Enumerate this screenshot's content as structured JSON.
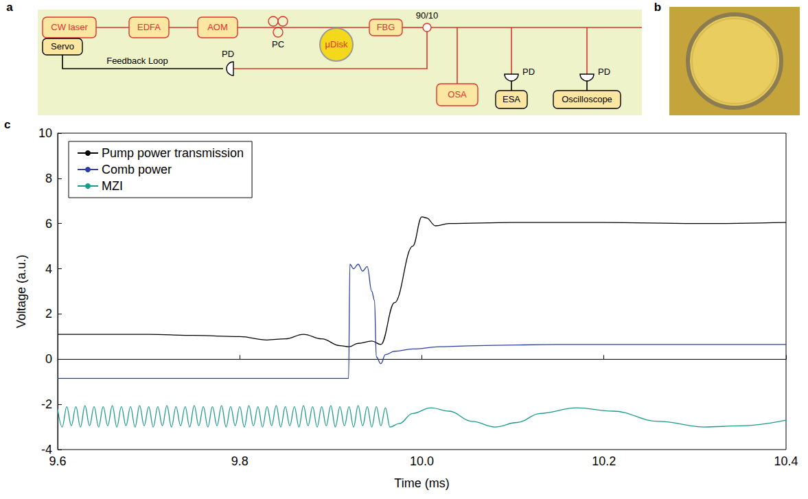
{
  "panel_labels": [
    "a",
    "b",
    "c"
  ],
  "diagram": {
    "nodes": [
      {
        "label": "CW laser"
      },
      {
        "label": "EDFA"
      },
      {
        "label": "AOM"
      },
      {
        "label": "PC"
      },
      {
        "label": "μDisk"
      },
      {
        "label": "FBG"
      },
      {
        "label": "90/10"
      },
      {
        "label": "Servo"
      },
      {
        "label": "PD"
      },
      {
        "label": "OSA"
      },
      {
        "label": "PD"
      },
      {
        "label": "ESA"
      },
      {
        "label": "PD"
      },
      {
        "label": "Oscilloscope"
      }
    ],
    "feedback_label": "Feedback Loop"
  },
  "chart_data": {
    "type": "line",
    "x_label": "Time (ms)",
    "y_label": "Voltage (a.u.)",
    "xlim": [
      9.6,
      10.4
    ],
    "xticks": [
      9.6,
      9.8,
      {
        "value": 10,
        "label": "10.0"
      },
      10.2,
      10.4
    ],
    "ylim": [
      -4,
      10
    ],
    "yticks": [
      -4,
      -2,
      0,
      2,
      4,
      6,
      8,
      10
    ],
    "grid": false,
    "legend": "upper left",
    "series": [
      {
        "name": "Pump power transmission",
        "color": "#000000",
        "x": [
          9.6,
          9.65,
          9.7,
          9.75,
          9.8,
          9.83,
          9.85,
          9.87,
          9.89,
          9.91,
          9.92,
          9.93,
          9.945,
          9.955,
          9.97,
          9.99,
          10.0,
          10.005,
          10.015,
          10.03,
          10.1,
          10.2,
          10.3,
          10.4
        ],
        "values": [
          1.1,
          1.1,
          1.1,
          1.05,
          1.0,
          0.85,
          0.9,
          1.1,
          0.9,
          0.6,
          0.55,
          0.7,
          0.8,
          0.65,
          2.5,
          5.0,
          6.3,
          6.25,
          5.9,
          6.0,
          6.05,
          6.05,
          6.0,
          6.05
        ]
      },
      {
        "name": "Comb power",
        "color": "#2b3f9e",
        "x": [
          9.6,
          9.7,
          9.8,
          9.9,
          9.9195,
          9.921,
          9.925,
          9.93,
          9.935,
          9.94,
          9.945,
          9.948,
          9.95,
          9.955,
          9.96,
          9.97,
          9.99,
          10.02,
          10.06,
          10.15,
          10.25,
          10.4
        ],
        "values": [
          -0.85,
          -0.85,
          -0.85,
          -0.85,
          -0.85,
          4.2,
          4.0,
          4.2,
          3.9,
          4.1,
          3.0,
          2.6,
          0.1,
          -0.2,
          0.2,
          0.35,
          0.45,
          0.55,
          0.6,
          0.65,
          0.65,
          0.65
        ]
      },
      {
        "name": "MZI",
        "color": "#1a9a8a",
        "x": [
          9.6,
          9.605,
          9.61,
          9.615,
          9.62,
          9.625,
          9.63,
          9.635,
          9.64,
          9.645,
          9.65,
          9.655,
          9.66,
          9.665,
          9.67,
          9.675,
          9.68,
          9.685,
          9.69,
          9.695,
          9.7,
          9.705,
          9.71,
          9.715,
          9.72,
          9.725,
          9.73,
          9.735,
          9.74,
          9.745,
          9.75,
          9.755,
          9.76,
          9.765,
          9.77,
          9.775,
          9.78,
          9.785,
          9.79,
          9.795,
          9.8,
          9.805,
          9.81,
          9.815,
          9.82,
          9.825,
          9.83,
          9.835,
          9.84,
          9.845,
          9.85,
          9.855,
          9.86,
          9.865,
          9.87,
          9.875,
          9.88,
          9.885,
          9.89,
          9.895,
          9.9,
          9.905,
          9.91,
          9.915,
          9.92,
          9.925,
          9.93,
          9.935,
          9.94,
          9.945,
          9.95,
          9.955,
          9.96,
          9.965,
          9.975,
          9.99,
          10.01,
          10.03,
          10.055,
          10.08,
          10.105,
          10.13,
          10.17,
          10.21,
          10.26,
          10.31,
          10.35,
          10.4
        ],
        "values": [
          -2.2,
          -3.0,
          -2.1,
          -2.95,
          -2.1,
          -3.0,
          -2.05,
          -2.95,
          -2.1,
          -3.0,
          -2.1,
          -2.95,
          -2.05,
          -3.0,
          -2.1,
          -2.95,
          -2.1,
          -3.0,
          -2.05,
          -2.95,
          -2.1,
          -3.0,
          -2.1,
          -2.95,
          -2.05,
          -3.0,
          -2.1,
          -2.95,
          -2.1,
          -3.0,
          -2.05,
          -2.95,
          -2.1,
          -3.0,
          -2.1,
          -2.95,
          -2.05,
          -3.0,
          -2.1,
          -2.95,
          -2.1,
          -3.0,
          -2.05,
          -2.95,
          -2.1,
          -3.0,
          -2.1,
          -2.95,
          -2.05,
          -3.0,
          -2.1,
          -2.95,
          -2.1,
          -3.0,
          -2.05,
          -2.95,
          -2.1,
          -3.0,
          -2.1,
          -2.95,
          -2.05,
          -3.0,
          -2.1,
          -2.95,
          -2.1,
          -3.0,
          -2.05,
          -2.95,
          -2.1,
          -3.0,
          -2.1,
          -2.95,
          -2.15,
          -3.0,
          -2.85,
          -2.4,
          -2.15,
          -2.3,
          -2.75,
          -3.0,
          -2.8,
          -2.4,
          -2.15,
          -2.3,
          -2.75,
          -3.0,
          -2.95,
          -2.7
        ]
      }
    ]
  }
}
